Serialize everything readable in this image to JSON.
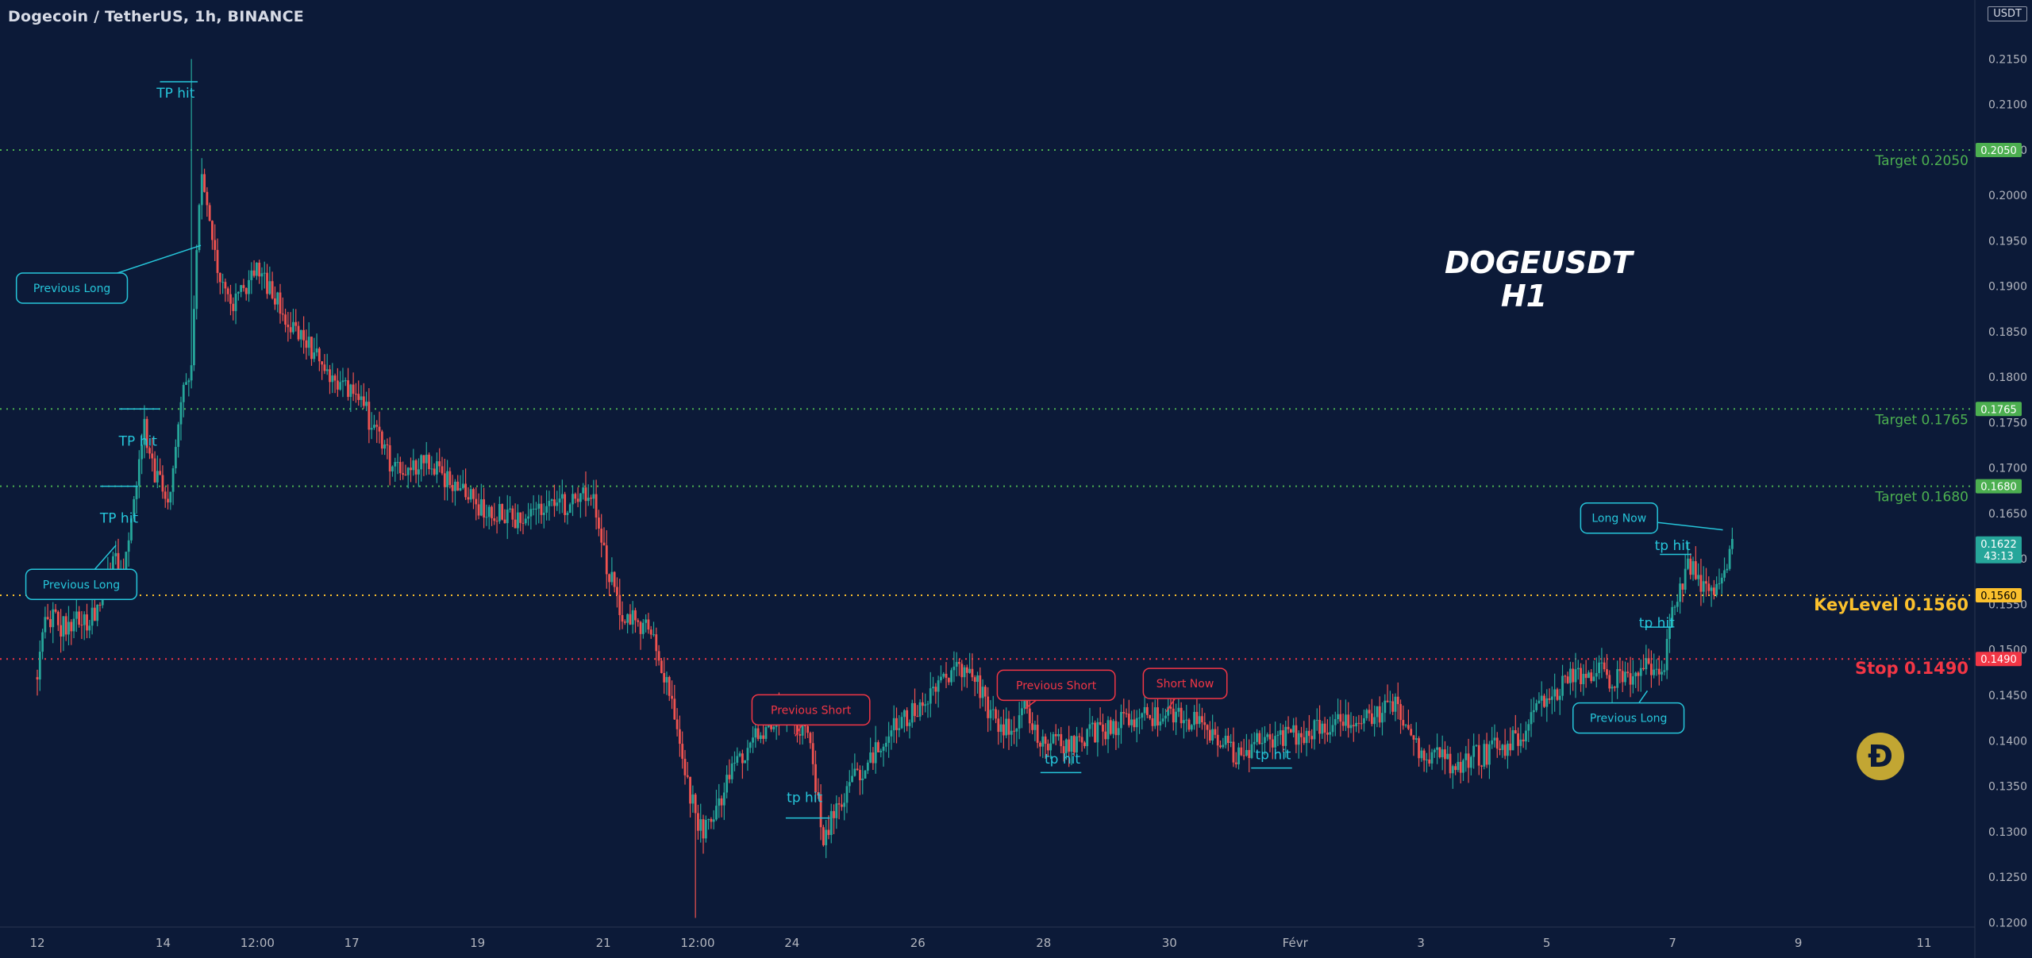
{
  "header": {
    "title": "Dogecoin / TetherUS, 1h, BINANCE"
  },
  "watermark": {
    "line1": "DOGEUSDT",
    "line2": "H1"
  },
  "price_unit": "USDT",
  "coin_icon": {
    "name": "dogecoin-logo",
    "glyph": "Ð"
  },
  "colors": {
    "background": "#0c1a38",
    "up": "#26a69a",
    "down": "#ef5350",
    "target": "#4caf50",
    "keylevel": "#fbc02d",
    "stop": "#f23645",
    "note_teal": "#26c6da",
    "note_red": "#f23645",
    "axis_text": "#b2b5be"
  },
  "chart_data": {
    "type": "candlestick",
    "symbol": "DOGEUSDT",
    "interval": "1h",
    "ylim": [
      0.1195,
      0.2215
    ],
    "y_ticks": [
      0.215,
      0.21,
      0.205,
      0.2,
      0.195,
      0.19,
      0.185,
      0.18,
      0.175,
      0.17,
      0.165,
      0.16,
      0.155,
      0.15,
      0.145,
      0.14,
      0.135,
      0.13,
      0.125,
      0.12
    ],
    "x_ticks": [
      "12",
      "14",
      "12:00",
      "17",
      "19",
      "21",
      "12:00",
      "24",
      "26",
      "28",
      "30",
      "Févr",
      "3",
      "5",
      "7",
      "9",
      "11"
    ],
    "x_tick_positions": [
      0.0,
      2.0,
      3.5,
      5.0,
      7.0,
      9.0,
      10.5,
      12.0,
      14.0,
      16.0,
      18.0,
      20.0,
      22.0,
      24.0,
      26.0,
      28.0,
      30.0
    ],
    "price_path": [
      [
        0.0,
        0.147
      ],
      [
        0.1,
        0.1545
      ],
      [
        0.4,
        0.1525
      ],
      [
        0.9,
        0.1535
      ],
      [
        1.2,
        0.161
      ],
      [
        1.35,
        0.1575
      ],
      [
        1.7,
        0.1745
      ],
      [
        1.85,
        0.1695
      ],
      [
        2.1,
        0.166
      ],
      [
        2.3,
        0.1775
      ],
      [
        2.45,
        0.1805
      ],
      [
        2.6,
        0.2035
      ],
      [
        2.8,
        0.1935
      ],
      [
        3.1,
        0.1875
      ],
      [
        3.5,
        0.1915
      ],
      [
        3.9,
        0.1875
      ],
      [
        4.4,
        0.1825
      ],
      [
        4.8,
        0.1795
      ],
      [
        5.2,
        0.1765
      ],
      [
        5.7,
        0.1695
      ],
      [
        6.3,
        0.1705
      ],
      [
        6.7,
        0.1675
      ],
      [
        7.1,
        0.1655
      ],
      [
        7.6,
        0.1645
      ],
      [
        8.2,
        0.1655
      ],
      [
        8.85,
        0.1675
      ],
      [
        9.0,
        0.1605
      ],
      [
        9.3,
        0.1535
      ],
      [
        9.7,
        0.1525
      ],
      [
        10.1,
        0.1445
      ],
      [
        10.4,
        0.1335
      ],
      [
        10.6,
        0.1295
      ],
      [
        10.9,
        0.1345
      ],
      [
        11.4,
        0.1405
      ],
      [
        11.9,
        0.1435
      ],
      [
        12.3,
        0.1395
      ],
      [
        12.5,
        0.1285
      ],
      [
        12.75,
        0.1335
      ],
      [
        13.2,
        0.1375
      ],
      [
        13.6,
        0.1415
      ],
      [
        14.1,
        0.1445
      ],
      [
        14.5,
        0.1475
      ],
      [
        14.9,
        0.1475
      ],
      [
        15.3,
        0.1405
      ],
      [
        15.7,
        0.1435
      ],
      [
        16.0,
        0.1395
      ],
      [
        16.4,
        0.1395
      ],
      [
        17.0,
        0.1415
      ],
      [
        17.6,
        0.1425
      ],
      [
        18.2,
        0.1425
      ],
      [
        18.6,
        0.1415
      ],
      [
        19.0,
        0.1385
      ],
      [
        19.3,
        0.1395
      ],
      [
        19.8,
        0.1405
      ],
      [
        20.5,
        0.1415
      ],
      [
        21.3,
        0.1425
      ],
      [
        21.6,
        0.1445
      ],
      [
        21.9,
        0.1395
      ],
      [
        22.5,
        0.1375
      ],
      [
        23.0,
        0.1385
      ],
      [
        23.6,
        0.1405
      ],
      [
        24.0,
        0.1445
      ],
      [
        24.4,
        0.1475
      ],
      [
        24.8,
        0.1475
      ],
      [
        25.2,
        0.1465
      ],
      [
        25.6,
        0.1485
      ],
      [
        25.85,
        0.1475
      ],
      [
        26.0,
        0.1545
      ],
      [
        26.25,
        0.1595
      ],
      [
        26.55,
        0.1565
      ],
      [
        26.75,
        0.1572
      ],
      [
        26.95,
        0.1622
      ]
    ],
    "last_price": "0.1622",
    "countdown": "43:13",
    "levels": [
      {
        "name": "target-2050",
        "price": 0.205,
        "label": "Target 0.2050",
        "tag": "0.2050",
        "kind": "target"
      },
      {
        "name": "target-1765",
        "price": 0.1765,
        "label": "Target 0.1765",
        "tag": "0.1765",
        "kind": "target"
      },
      {
        "name": "target-1680",
        "price": 0.168,
        "label": "Target 0.1680",
        "tag": "0.1680",
        "kind": "target"
      },
      {
        "name": "keylevel-1560",
        "price": 0.156,
        "label": "KeyLevel 0.1560",
        "tag": "0.1560",
        "kind": "keylevel"
      },
      {
        "name": "stop-1490",
        "price": 0.149,
        "label": "Stop 0.1490",
        "tag": "0.1490",
        "kind": "stop"
      }
    ],
    "callouts": [
      {
        "text": "Previous Long",
        "color": "teal",
        "box_t": 0.55,
        "box_p": 0.1898,
        "tip_t": 2.6,
        "tip_p": 0.1945
      },
      {
        "text": "Previous Long",
        "color": "teal",
        "box_t": 0.7,
        "box_p": 0.1572,
        "tip_t": 1.25,
        "tip_p": 0.1615
      },
      {
        "text": "Previous Short",
        "color": "red",
        "box_t": 12.3,
        "box_p": 0.1434,
        "tip_t": 12.05,
        "tip_p": 0.1405
      },
      {
        "text": "Previous Short",
        "color": "red",
        "box_t": 16.2,
        "box_p": 0.1461,
        "tip_t": 15.7,
        "tip_p": 0.1435
      },
      {
        "text": "Short Now",
        "color": "red",
        "box_t": 18.25,
        "box_p": 0.1463,
        "tip_t": 17.95,
        "tip_p": 0.1432
      },
      {
        "text": "Previous Long",
        "color": "teal",
        "box_t": 25.3,
        "box_p": 0.1425,
        "tip_t": 25.6,
        "tip_p": 0.1455
      },
      {
        "text": "Long Now",
        "color": "teal",
        "box_t": 25.15,
        "box_p": 0.1645,
        "tip_t": 26.8,
        "tip_p": 0.1632
      }
    ],
    "hits": [
      {
        "text": "TP hit",
        "t": 2.2,
        "p": 0.2113,
        "line_t0": 1.95,
        "line_t1": 2.55,
        "line_p": 0.2125
      },
      {
        "text": "TP hit",
        "t": 1.6,
        "p": 0.173,
        "line_t0": 1.3,
        "line_t1": 1.95,
        "line_p": 0.1765
      },
      {
        "text": "TP hit",
        "t": 1.3,
        "p": 0.1645,
        "line_t0": 1.0,
        "line_t1": 1.6,
        "line_p": 0.168
      },
      {
        "text": "tp hit",
        "t": 12.2,
        "p": 0.1338,
        "line_t0": 11.9,
        "line_t1": 12.6,
        "line_p": 0.1315
      },
      {
        "text": "tp hit",
        "t": 16.3,
        "p": 0.138,
        "line_t0": 15.95,
        "line_t1": 16.6,
        "line_p": 0.1365
      },
      {
        "text": "tp hit",
        "t": 19.65,
        "p": 0.1385,
        "line_t0": 19.3,
        "line_t1": 19.95,
        "line_p": 0.137
      },
      {
        "text": "tp hit",
        "t": 26.0,
        "p": 0.1615,
        "line_t0": 25.8,
        "line_t1": 26.3,
        "line_p": 0.1605
      },
      {
        "text": "tp hit",
        "t": 25.75,
        "p": 0.153,
        "line_t0": 25.55,
        "line_t1": 26.0,
        "line_p": 0.1525
      }
    ]
  }
}
